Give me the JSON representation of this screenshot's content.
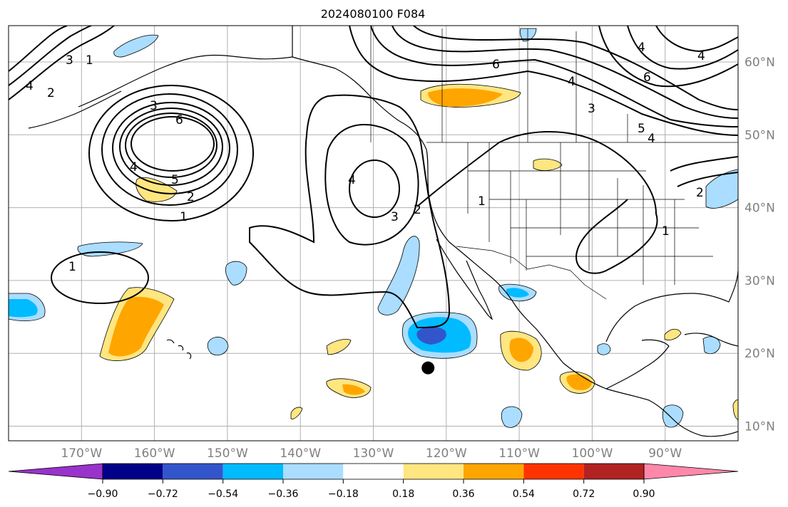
{
  "title": "2024080100 F084",
  "map": {
    "lon_labels": [
      "170°W",
      "160°W",
      "150°W",
      "140°W",
      "130°W",
      "120°W",
      "110°W",
      "100°W",
      "90°W"
    ],
    "lat_labels": [
      "60°N",
      "50°N",
      "40°N",
      "30°N",
      "20°N",
      "10°N"
    ],
    "gridlines": true,
    "lon_range": [
      -180,
      -80
    ],
    "lat_range": [
      8,
      65
    ],
    "marker": {
      "lon": -122.5,
      "lat": 18.0,
      "color": "#000000"
    },
    "contour_labels": [
      "4",
      "2",
      "1",
      "3",
      "3",
      "6",
      "4",
      "5",
      "2",
      "1",
      "1",
      "4",
      "3",
      "2",
      "1",
      "6",
      "4",
      "3",
      "5",
      "4",
      "1",
      "2",
      "6",
      "4",
      "4"
    ]
  },
  "colorbar": {
    "tick_labels": [
      "−0.90",
      "−0.72",
      "−0.54",
      "−0.36",
      "−0.18",
      "0.18",
      "0.36",
      "0.54",
      "0.72",
      "0.90"
    ],
    "bins": [
      {
        "color": "#9933cc"
      },
      {
        "color": "#000088"
      },
      {
        "color": "#3355cc"
      },
      {
        "color": "#00bbff"
      },
      {
        "color": "#aaddff"
      },
      {
        "color": "#ffffff"
      },
      {
        "color": "#ffe680"
      },
      {
        "color": "#ffa500"
      },
      {
        "color": "#ff3300"
      },
      {
        "color": "#b22222"
      },
      {
        "color": "#ff88aa"
      }
    ]
  }
}
